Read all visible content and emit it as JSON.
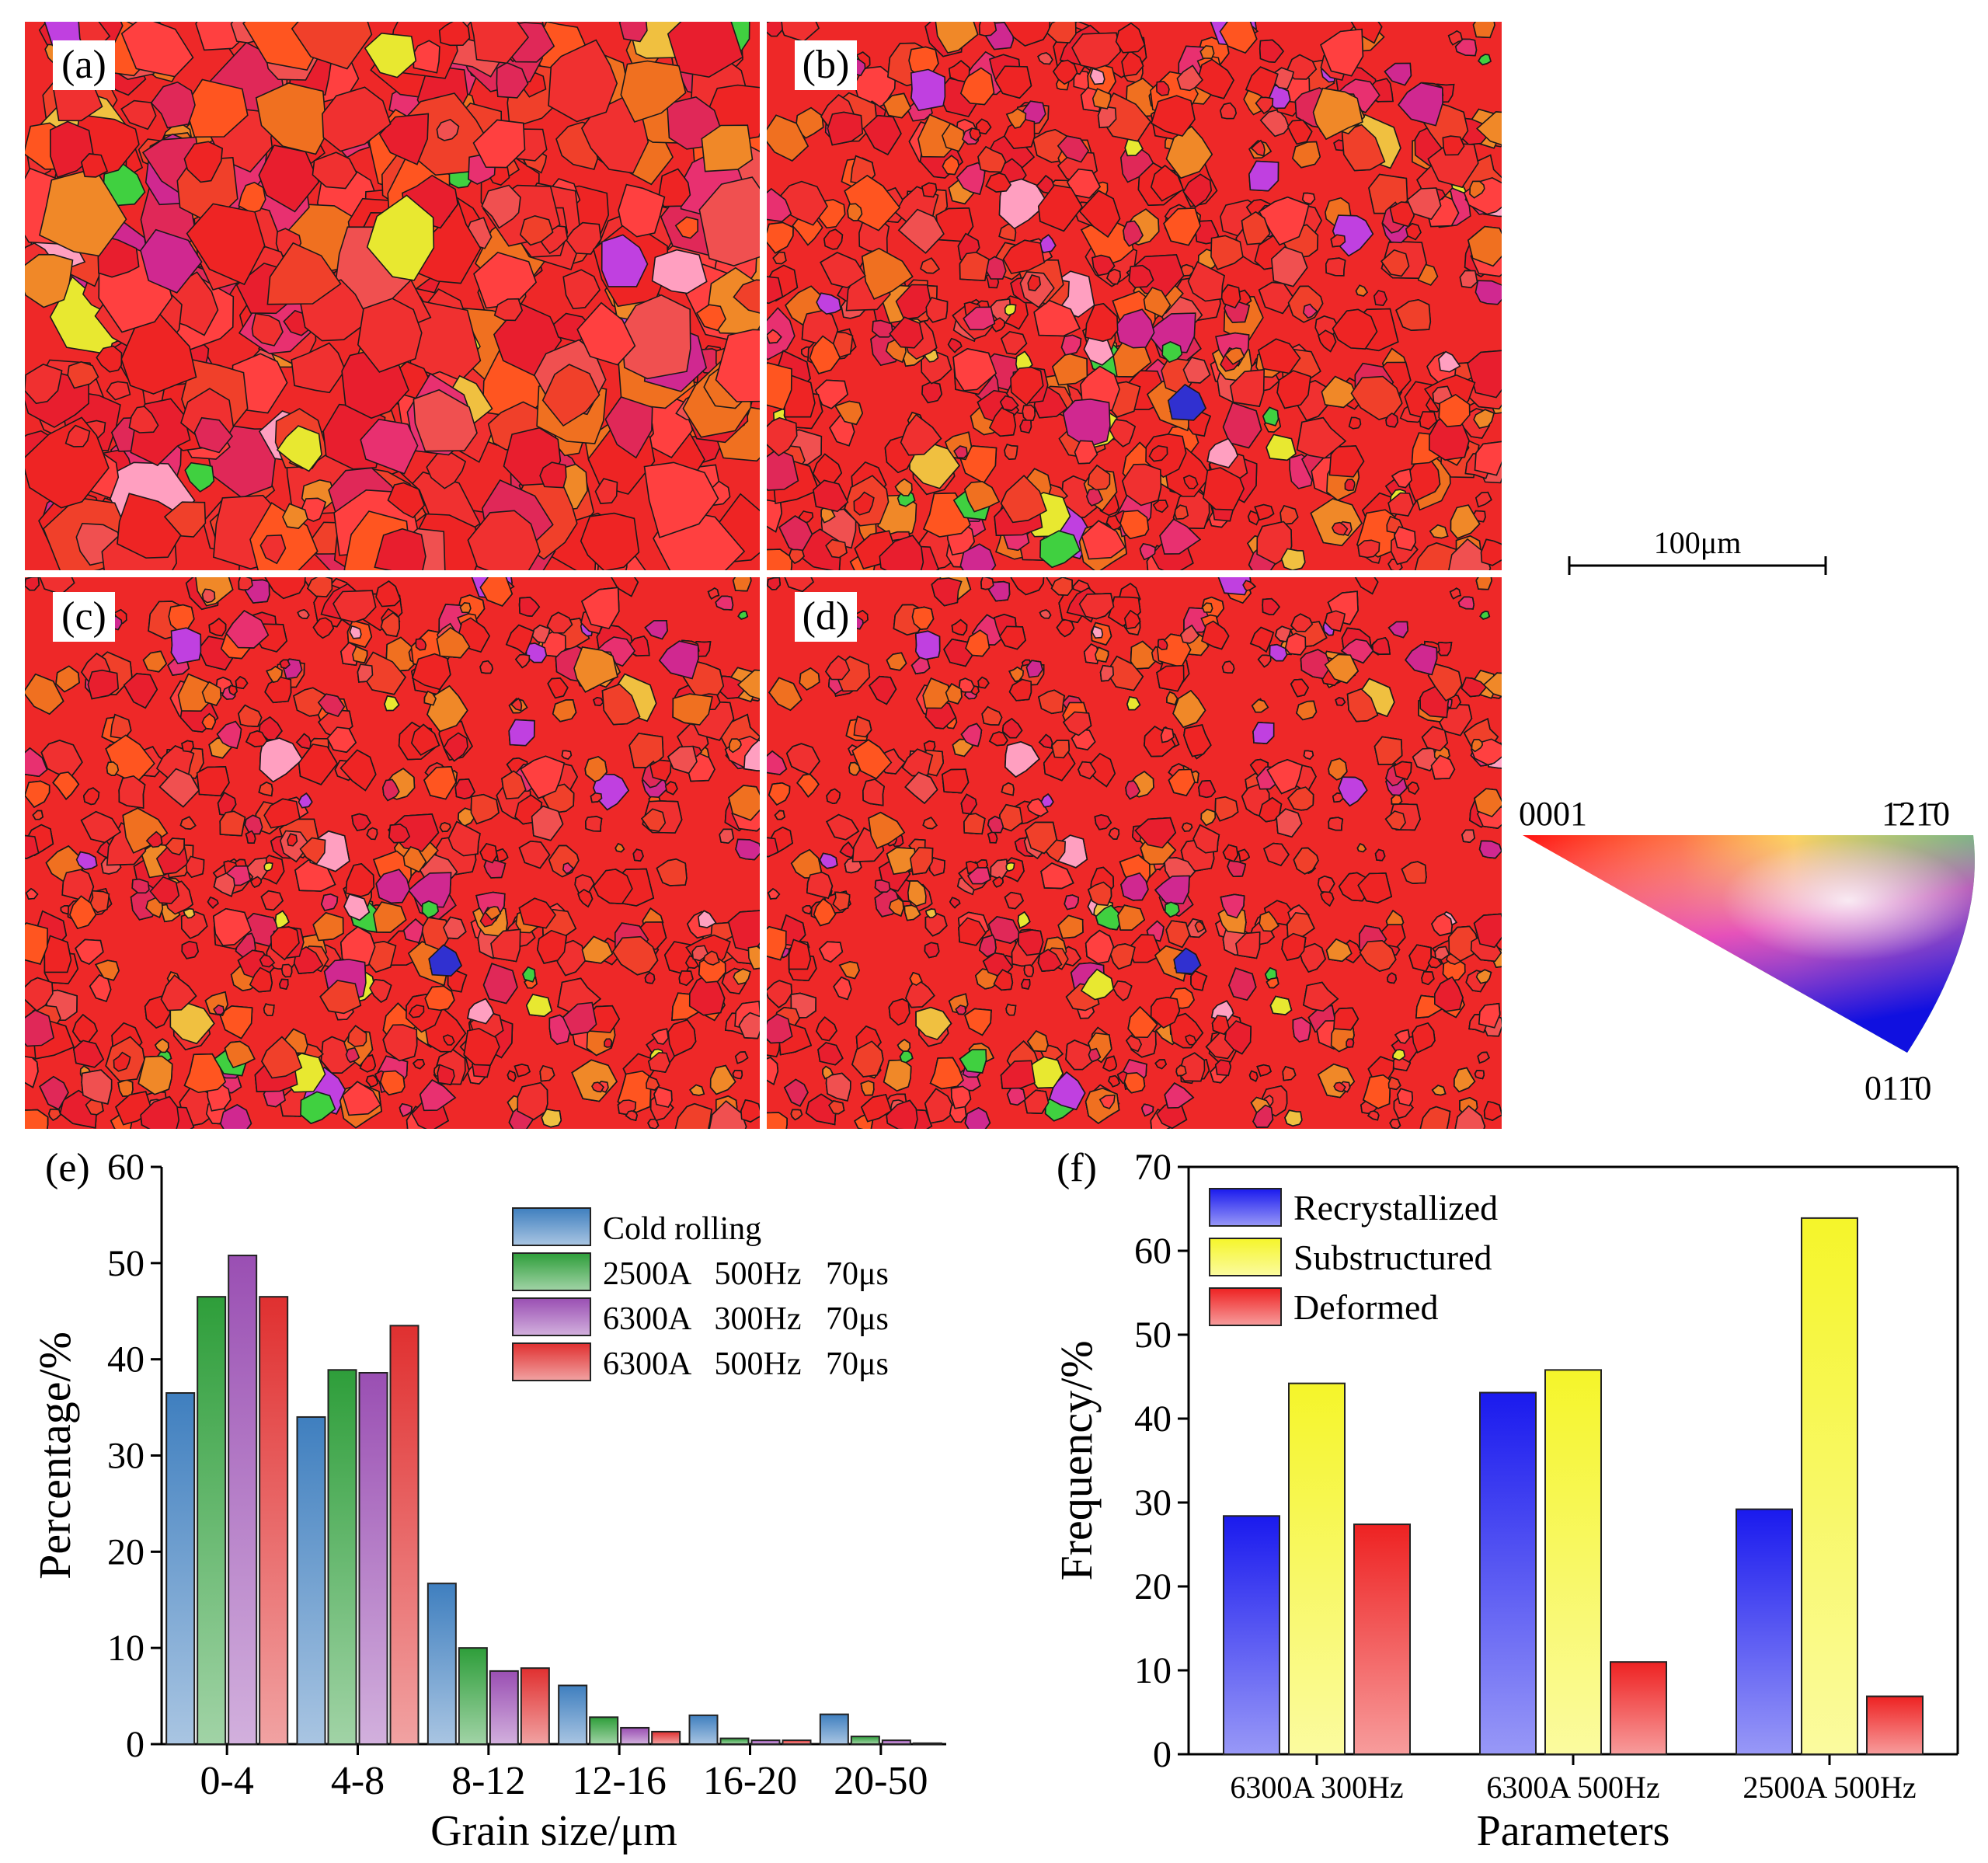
{
  "ebsd_maps": [
    {
      "label": "(a)",
      "grain_density": "coarse"
    },
    {
      "label": "(b)",
      "grain_density": "medium"
    },
    {
      "label": "(c)",
      "grain_density": "fine"
    },
    {
      "label": "(d)",
      "grain_density": "very-fine"
    }
  ],
  "scale_bar": {
    "label": "100μm"
  },
  "ipf_legend": {
    "corner_0001": "0001",
    "corner_1210": "1̄21̄0",
    "corner_0110": "011̄0"
  },
  "colors": {
    "ipf_red": "#ff2020",
    "ipf_green": "#20e020",
    "ipf_blue": "#1010e0",
    "orange": "#f07020",
    "magenta": "#e030a0",
    "yellow": "#f0f020"
  },
  "chart_data": [
    {
      "panel_label": "(e)",
      "type": "bar",
      "xlabel": "Grain size/μm",
      "ylabel": "Percentage/%",
      "ylim": [
        0,
        60
      ],
      "yticks": [
        0,
        10,
        20,
        30,
        40,
        50,
        60
      ],
      "categories": [
        "0-4",
        "4-8",
        "8-12",
        "12-16",
        "16-20",
        "20-50"
      ],
      "series": [
        {
          "name": "Cold rolling",
          "color": "#3f7fbf",
          "values": [
            36.5,
            34,
            16.7,
            6.1,
            3.0,
            3.1
          ]
        },
        {
          "name": "2500A   500Hz   70μs",
          "color": "#2e9e3a",
          "values": [
            46.5,
            38.9,
            10.0,
            2.8,
            0.6,
            0.8
          ]
        },
        {
          "name": "6300A   300Hz   70μs",
          "color": "#9a4fb3",
          "values": [
            50.8,
            38.6,
            7.6,
            1.7,
            0.4,
            0.4
          ]
        },
        {
          "name": "6300A   500Hz   70μs",
          "color": "#e03030",
          "values": [
            46.5,
            43.5,
            7.9,
            1.3,
            0.4,
            0.1
          ]
        }
      ],
      "legend_position": "top-right"
    },
    {
      "panel_label": "(f)",
      "type": "bar",
      "xlabel": "Parameters",
      "ylabel": "Frequency/%",
      "ylim": [
        0,
        70
      ],
      "yticks": [
        0,
        10,
        20,
        30,
        40,
        50,
        60,
        70
      ],
      "categories": [
        "6300A 300Hz",
        "6300A 500Hz",
        "2500A 500Hz"
      ],
      "series": [
        {
          "name": "Recrystallized",
          "color": "#1a1aee",
          "values": [
            28.4,
            43.1,
            29.2
          ]
        },
        {
          "name": "Substructured",
          "color": "#f5f52a",
          "values": [
            44.2,
            45.8,
            63.9
          ]
        },
        {
          "name": "Deformed",
          "color": "#ee2222",
          "values": [
            27.4,
            11.0,
            6.9
          ]
        }
      ],
      "legend_position": "top-left"
    }
  ]
}
